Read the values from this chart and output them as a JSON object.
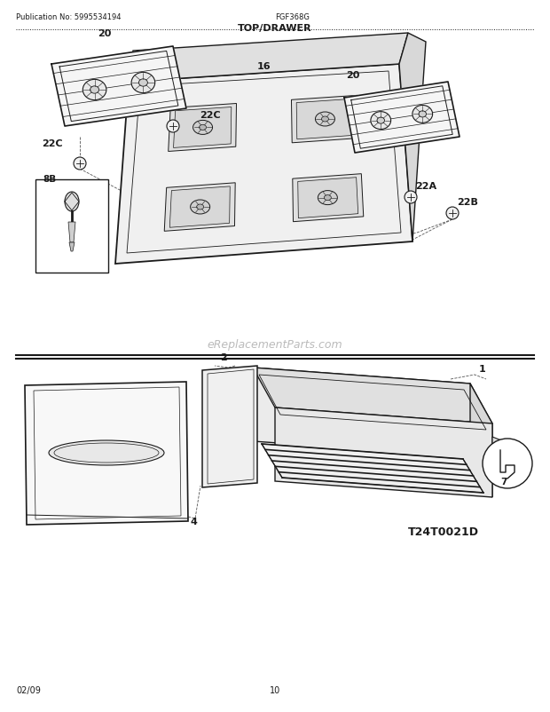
{
  "pub_no": "Publication No: 5995534194",
  "model": "FGF368G",
  "section": "TOP/DRAWER",
  "page": "10",
  "date": "02/09",
  "watermark": "eReplacementParts.com",
  "bg_color": "#ffffff",
  "lc": "#1a1a1a",
  "tc": "#1a1a1a",
  "figsize": [
    6.2,
    8.03
  ],
  "dpi": 100
}
